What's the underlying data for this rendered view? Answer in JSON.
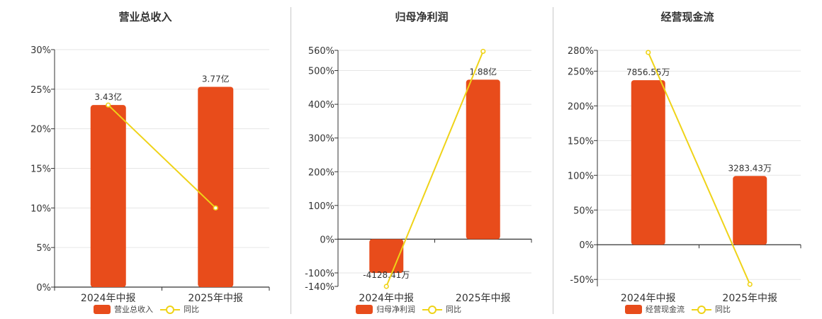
{
  "colors": {
    "bar": "#E84C1B",
    "line": "#EFD318",
    "grid": "#e6e6e6",
    "axis": "#333333",
    "text": "#333333"
  },
  "legend": {
    "line_label": "同比"
  },
  "chart_data": [
    {
      "type": "bar",
      "title": "营业总收入",
      "categories": [
        "2024年中报",
        "2025年中报"
      ],
      "series": [
        {
          "name": "营业总收入",
          "type": "bar",
          "values": [
            23,
            25.3
          ],
          "labels": [
            "3.43亿",
            "3.77亿"
          ]
        },
        {
          "name": "同比",
          "type": "line",
          "values": [
            23,
            10
          ]
        }
      ],
      "ylim": [
        0,
        30
      ],
      "yticks": [
        0,
        5,
        10,
        15,
        20,
        25,
        30
      ],
      "ytick_labels": [
        "0%",
        "5%",
        "10%",
        "15%",
        "20%",
        "25%",
        "30%"
      ]
    },
    {
      "type": "bar",
      "title": "归母净利润",
      "categories": [
        "2024年中报",
        "2025年中报"
      ],
      "series": [
        {
          "name": "归母净利润",
          "type": "bar",
          "values": [
            -100,
            473
          ],
          "labels": [
            "-4128.41万",
            "1.88亿"
          ]
        },
        {
          "name": "同比",
          "type": "line",
          "values": [
            -140,
            557
          ]
        }
      ],
      "ylim": [
        -140,
        560
      ],
      "yticks": [
        -140,
        -100,
        0,
        100,
        200,
        300,
        400,
        500,
        560
      ],
      "ytick_labels": [
        "-140%",
        "-100%",
        "0%",
        "100%",
        "200%",
        "300%",
        "400%",
        "500%",
        "560%"
      ]
    },
    {
      "type": "bar",
      "title": "经营现金流",
      "categories": [
        "2024年中报",
        "2025年中报"
      ],
      "series": [
        {
          "name": "经营现金流",
          "type": "bar",
          "values": [
            237,
            99
          ],
          "labels": [
            "7856.55万",
            "3283.43万"
          ]
        },
        {
          "name": "同比",
          "type": "line",
          "values": [
            277,
            -57
          ]
        }
      ],
      "ylim": [
        -60,
        280
      ],
      "yticks": [
        -50,
        0,
        50,
        100,
        150,
        200,
        250,
        280
      ],
      "ytick_labels": [
        "-50%",
        "0%",
        "50%",
        "100%",
        "150%",
        "200%",
        "250%",
        "280%"
      ]
    }
  ]
}
